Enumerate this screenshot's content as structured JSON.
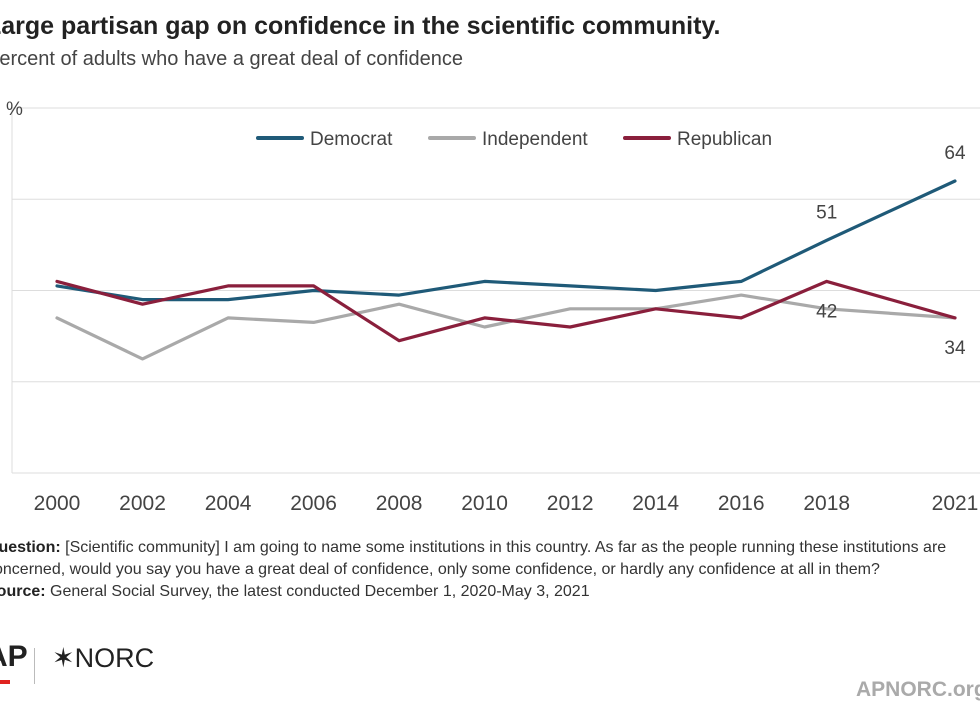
{
  "header": {
    "title": "Large partisan gap on confidence in the scientific community.",
    "subtitle": "Percent of adults who have a great deal of confidence"
  },
  "chart_data": {
    "type": "line",
    "title": "Large partisan gap on confidence in the scientific community.",
    "subtitle": "Percent of adults who have a great deal of confidence",
    "x": [
      2000,
      2002,
      2004,
      2006,
      2008,
      2010,
      2012,
      2014,
      2016,
      2018,
      2021
    ],
    "x_tick_labels": [
      "2000",
      "2002",
      "2004",
      "2006",
      "2008",
      "2010",
      "2012",
      "2014",
      "2016",
      "2018",
      "2021"
    ],
    "ylim": [
      0,
      80
    ],
    "y_ticks": [
      0,
      20,
      40,
      60,
      80
    ],
    "y_tick_label_top": "%",
    "grid": true,
    "legend_position": "top-center",
    "series": [
      {
        "name": "Democrat",
        "color": "#1f5a78",
        "values": [
          41,
          38,
          38,
          40,
          39,
          42,
          41,
          40,
          42,
          51,
          64
        ]
      },
      {
        "name": "Independent",
        "color": "#a9a9a9",
        "values": [
          34,
          25,
          34,
          33,
          37,
          32,
          36,
          36,
          39,
          36,
          34
        ]
      },
      {
        "name": "Republican",
        "color": "#8a1f3c",
        "values": [
          42,
          37,
          41,
          41,
          29,
          34,
          32,
          36,
          34,
          42,
          34
        ]
      }
    ],
    "annotations": [
      {
        "series": "Democrat",
        "x": 2018,
        "label": "51",
        "position": "above"
      },
      {
        "series": "Democrat",
        "x": 2021,
        "label": "64",
        "position": "above"
      },
      {
        "series": "Republican",
        "x": 2018,
        "label": "42",
        "position": "below"
      },
      {
        "series": "Republican",
        "x": 2021,
        "label": "34",
        "position": "below"
      }
    ]
  },
  "notes": {
    "question_label": "Question:",
    "question_text": "[Scientific community] I am going to name some institutions in this country. As far as the people running these institutions are concerned, would you say you have a great deal of confidence, only some confidence, or hardly any confidence at all in them?",
    "source_label": "Source:",
    "source_text": "General Social Survey, the latest conducted December 1, 2020-May 3, 2021"
  },
  "footer": {
    "ap_logo": "AP",
    "norc_logo": "✶NORC",
    "site": "APNORC.org",
    "brand_red": "#e0231f"
  }
}
